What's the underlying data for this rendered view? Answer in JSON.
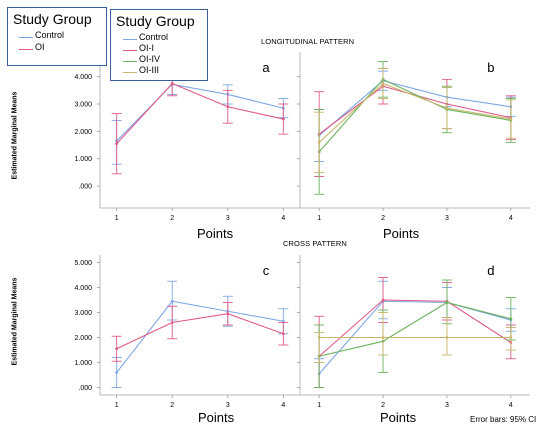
{
  "legend_small": {
    "title": "Study Group",
    "entries": [
      {
        "label": "Control",
        "color": "#7da7e6"
      },
      {
        "label": "OI",
        "color": "#e05a88"
      }
    ]
  },
  "legend_large": {
    "title": "Study Group",
    "entries": [
      {
        "label": "Control",
        "color": "#7da7e6"
      },
      {
        "label": "OI-I",
        "color": "#e05a88"
      },
      {
        "label": "OI-IV",
        "color": "#6bb35c"
      },
      {
        "label": "OI-III",
        "color": "#c9b66a"
      }
    ]
  },
  "sections": {
    "longitudinal_title": "LONGITUDINAL PATTERN",
    "cross_title": "CROSS PATTERN",
    "ylabel": "Estimated Marginal Means",
    "points_label": "Points",
    "error_note": "Error bars: 95% CI"
  },
  "chart_data": [
    {
      "id": "a",
      "type": "line",
      "panel_label": "a",
      "title": "",
      "xlabel": "Points",
      "ylabel": "Estimated Marginal Means",
      "x": [
        1,
        2,
        3,
        4
      ],
      "xlim": [
        0.7,
        4.3
      ],
      "ylim": [
        -0.8,
        4.9
      ],
      "yticks": [
        0,
        1,
        2,
        3,
        4
      ],
      "ytick_labels": [
        ".000",
        "1.000",
        "2.000",
        "3.000",
        "4.000"
      ],
      "series": [
        {
          "name": "Control",
          "color": "#7da7e6",
          "values": [
            1.65,
            3.72,
            3.35,
            2.85
          ],
          "ci_low": [
            0.8,
            3.35,
            3.0,
            2.5
          ],
          "ci_high": [
            2.4,
            4.1,
            3.7,
            3.2
          ]
        },
        {
          "name": "OI",
          "color": "#e05a88",
          "values": [
            1.55,
            3.75,
            2.9,
            2.45
          ],
          "ci_low": [
            0.45,
            3.3,
            2.3,
            1.9
          ],
          "ci_high": [
            2.65,
            4.1,
            3.5,
            3.0
          ]
        }
      ]
    },
    {
      "id": "b",
      "type": "line",
      "panel_label": "b",
      "title": "",
      "xlabel": "Points",
      "ylabel": "",
      "x": [
        1,
        2,
        3,
        4
      ],
      "xlim": [
        0.7,
        4.3
      ],
      "ylim": [
        -0.8,
        4.9
      ],
      "yticks": [
        0,
        1,
        2,
        3,
        4
      ],
      "ytick_labels": [],
      "series": [
        {
          "name": "Control",
          "color": "#7da7e6",
          "values": [
            1.85,
            3.85,
            3.25,
            2.9
          ],
          "ci_low": [
            0.9,
            3.5,
            2.9,
            2.55
          ],
          "ci_high": [
            2.8,
            4.2,
            3.6,
            3.25
          ]
        },
        {
          "name": "OI-I",
          "color": "#e05a88",
          "values": [
            1.9,
            3.65,
            3.0,
            2.5
          ],
          "ci_low": [
            0.35,
            3.0,
            2.1,
            1.7
          ],
          "ci_high": [
            3.45,
            4.3,
            3.9,
            3.3
          ]
        },
        {
          "name": "OI-IV",
          "color": "#6bb35c",
          "values": [
            1.25,
            3.9,
            2.8,
            2.4
          ],
          "ci_low": [
            -0.3,
            3.25,
            1.95,
            1.6
          ],
          "ci_high": [
            2.8,
            4.55,
            3.65,
            3.2
          ]
        },
        {
          "name": "OI-III",
          "color": "#c9b66a",
          "values": [
            1.6,
            3.75,
            2.85,
            2.45
          ],
          "ci_low": [
            0.5,
            3.2,
            2.1,
            1.75
          ],
          "ci_high": [
            2.7,
            4.3,
            3.6,
            3.15
          ]
        }
      ]
    },
    {
      "id": "c",
      "type": "line",
      "panel_label": "c",
      "title": "",
      "xlabel": "Points",
      "ylabel": "Estimated Marginal Means",
      "x": [
        1,
        2,
        3,
        4
      ],
      "xlim": [
        0.7,
        4.3
      ],
      "ylim": [
        -0.3,
        5.3
      ],
      "yticks": [
        0,
        1,
        2,
        3,
        4,
        5
      ],
      "ytick_labels": [
        ".000",
        "1.000",
        "2.000",
        "3.000",
        "4.000",
        "5.000"
      ],
      "series": [
        {
          "name": "Control",
          "color": "#7da7e6",
          "values": [
            0.6,
            3.45,
            3.05,
            2.65
          ],
          "ci_low": [
            0.0,
            2.7,
            2.45,
            2.15
          ],
          "ci_high": [
            1.2,
            4.25,
            3.65,
            3.15
          ]
        },
        {
          "name": "OI",
          "color": "#e05a88",
          "values": [
            1.55,
            2.6,
            2.95,
            2.15
          ],
          "ci_low": [
            1.05,
            1.95,
            2.5,
            1.7
          ],
          "ci_high": [
            2.05,
            3.25,
            3.4,
            2.6
          ]
        }
      ]
    },
    {
      "id": "d",
      "type": "line",
      "panel_label": "d",
      "title": "",
      "xlabel": "Points",
      "ylabel": "",
      "x": [
        1,
        2,
        3,
        4
      ],
      "xlim": [
        0.7,
        4.3
      ],
      "ylim": [
        -0.3,
        5.3
      ],
      "yticks": [
        0,
        1,
        2,
        3,
        4,
        5
      ],
      "ytick_labels": [],
      "series": [
        {
          "name": "Control",
          "color": "#7da7e6",
          "values": [
            0.55,
            3.45,
            3.4,
            2.7
          ],
          "ci_low": [
            0.0,
            2.75,
            2.8,
            2.25
          ],
          "ci_high": [
            1.15,
            4.25,
            4.0,
            3.15
          ]
        },
        {
          "name": "OI-I",
          "color": "#e05a88",
          "values": [
            1.25,
            3.5,
            3.45,
            1.8
          ],
          "ci_low": [
            0.0,
            2.6,
            2.7,
            1.15
          ],
          "ci_high": [
            2.85,
            4.4,
            4.2,
            2.5
          ]
        },
        {
          "name": "OI-IV",
          "color": "#6bb35c",
          "values": [
            1.25,
            1.85,
            3.4,
            2.75
          ],
          "ci_low": [
            0.0,
            0.6,
            2.55,
            1.9
          ],
          "ci_high": [
            2.5,
            3.1,
            4.3,
            3.6
          ]
        },
        {
          "name": "OI-III",
          "color": "#c9b66a",
          "values": [
            2.0,
            2.0,
            2.0,
            2.0
          ],
          "ci_low": [
            1.0,
            1.3,
            1.3,
            1.5
          ],
          "ci_high": [
            2.2,
            3.0,
            2.8,
            2.4
          ]
        }
      ]
    }
  ]
}
